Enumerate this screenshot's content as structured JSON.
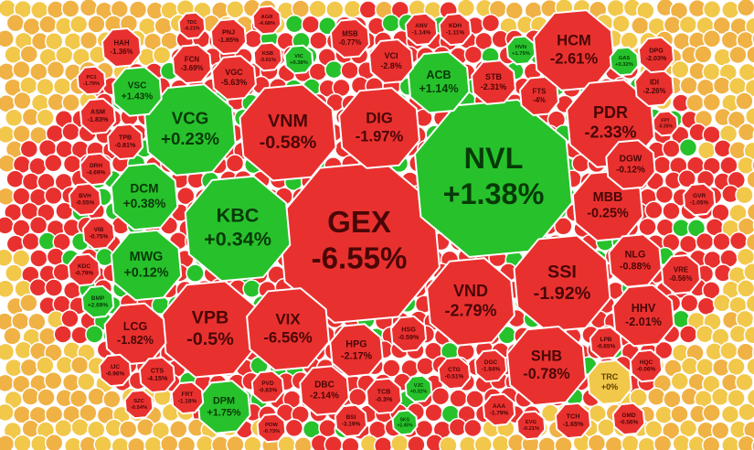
{
  "chart_data": {
    "type": "voronoi-treemap",
    "categories": [
      "GEX",
      "NVL",
      "VNM",
      "DIG",
      "VCG",
      "KBC",
      "VPB",
      "VIX",
      "VND",
      "SSI",
      "SHB",
      "HCM",
      "PDR",
      "MBB",
      "DCM",
      "MWG",
      "ACB",
      "VSC",
      "HHV",
      "NLG",
      "DGW",
      "LCG",
      "HPG",
      "DBC",
      "VRE",
      "TRC",
      "DPM",
      "STB",
      "FTS",
      "IDI",
      "DPG",
      "VCI",
      "MSB",
      "VGC",
      "FCN",
      "PNJ",
      "HAH",
      "ASM",
      "TPB",
      "DRH",
      "BVH",
      "VIB",
      "KDC",
      "BMP",
      "IJC",
      "CTS",
      "FRT",
      "SZC",
      "PVD",
      "POW",
      "BSI",
      "TCB",
      "HSG",
      "CTG",
      "DGC",
      "AAA",
      "EVG",
      "TCH",
      "HQC",
      "LPB",
      "GMD",
      "KSB",
      "AGR",
      "VIC",
      "ANV",
      "KDH",
      "HVN",
      "GAS",
      "PC1",
      "TDC",
      "VJC",
      "FPT",
      "GVR",
      "SKG"
    ],
    "values": [
      -6.55,
      1.38,
      -0.58,
      -1.97,
      0.23,
      0.34,
      -0.5,
      -6.56,
      -2.79,
      -1.92,
      -0.78,
      -2.61,
      -2.33,
      -0.25,
      0.38,
      0.12,
      1.14,
      1.43,
      -2.01,
      -0.88,
      -0.12,
      -1.82,
      -2.17,
      -2.14,
      -0.56,
      0,
      1.75,
      -2.31,
      -4,
      -2.26,
      -2.03,
      -2.8,
      -0.77,
      -5.63,
      -3.69,
      -1.85,
      -1.36,
      -1.83,
      -0.81,
      -4.69,
      -0.55,
      -0.75,
      -0.79,
      2.69,
      -0.96,
      -4.15,
      -1.18,
      -0.54,
      -0.83,
      -0.73,
      -3.19,
      -0.3,
      -0.59,
      -0.51,
      -1.84,
      -1.79,
      -0.21,
      -1.65,
      -0.06,
      -0.65,
      -0.56,
      -3.01,
      -4.68,
      0.38,
      -1.14,
      -1.11,
      1.75,
      0.32,
      -1.79,
      -6.21,
      0.32,
      -0.35,
      -1.05,
      2.45
    ],
    "value_labels": [
      "-6.55%",
      "+1.38%",
      "-0.58%",
      "-1.97%",
      "+0.23%",
      "+0.34%",
      "-0.5%",
      "-6.56%",
      "-2.79%",
      "-1.92%",
      "-0.78%",
      "-2.61%",
      "-2.33%",
      "-0.25%",
      "+0.38%",
      "+0.12%",
      "+1.14%",
      "+1.43%",
      "-2.01%",
      "-0.88%",
      "-0.12%",
      "-1.82%",
      "-2.17%",
      "-2.14%",
      "-0.56%",
      "+0%",
      "+1.75%",
      "-2.31%",
      "-4%",
      "-2.26%",
      "-2.03%",
      "-2.8%",
      "-0.77%",
      "-5.63%",
      "-3.69%",
      "-1.85%",
      "-1.36%",
      "-1.83%",
      "-0.81%",
      "-4.69%",
      "-0.55%",
      "-0.75%",
      "-0.79%",
      "+2.69%",
      "-0.96%",
      "-4.15%",
      "-1.18%",
      "-0.54%",
      "-0.83%",
      "-0.73%",
      "-3.19%",
      "-0.3%",
      "-0.59%",
      "-0.51%",
      "-1.84%",
      "-1.79%",
      "-0.21%",
      "-1.65%",
      "-0.06%",
      "-0.65%",
      "-0.56%",
      "-3.01%",
      "-4.68%",
      "+0.38%",
      "-1.14%",
      "-1.11%",
      "+1.75%",
      "+0.32%",
      "-1.79%",
      "-6.21%",
      "+0.32%",
      "-0.35%",
      "-1.05%",
      "+2.45%"
    ],
    "colors": {
      "up": "#27c12c",
      "down": "#e8312f",
      "flat": "#f2c84b"
    }
  }
}
